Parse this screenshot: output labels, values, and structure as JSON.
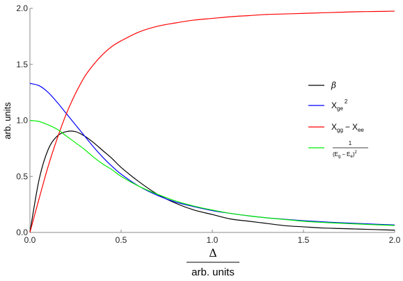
{
  "chart_data": {
    "type": "line",
    "title": "",
    "xlabel_num": "Δ",
    "xlabel_den": "arb. units",
    "ylabel": "arb. units",
    "xlim": [
      0,
      2.0
    ],
    "ylim": [
      0,
      2.0
    ],
    "x_ticks": [
      0.0,
      0.5,
      1.0,
      1.5,
      2.0
    ],
    "x_tick_labels": [
      "0.0",
      "0.5",
      "1.0",
      "1.5",
      "2.0"
    ],
    "y_ticks": [
      0.0,
      0.5,
      1.0,
      1.5,
      2.0
    ],
    "y_tick_labels": [
      "0.0",
      "0.5",
      "1.0",
      "1.5",
      "2.0"
    ],
    "grid": false,
    "legend_position": "right",
    "x": [
      0.0,
      0.05,
      0.1,
      0.15,
      0.2,
      0.25,
      0.3,
      0.35,
      0.4,
      0.45,
      0.5,
      0.6,
      0.7,
      0.8,
      0.9,
      1.0,
      1.1,
      1.2,
      1.3,
      1.4,
      1.5,
      1.6,
      1.7,
      1.8,
      1.9,
      2.0
    ],
    "series": [
      {
        "key": "beta",
        "color": "#000000",
        "values": [
          0.0,
          0.47,
          0.74,
          0.86,
          0.9,
          0.9,
          0.86,
          0.8,
          0.73,
          0.66,
          0.58,
          0.45,
          0.34,
          0.26,
          0.2,
          0.16,
          0.12,
          0.1,
          0.08,
          0.06,
          0.05,
          0.04,
          0.035,
          0.03,
          0.025,
          0.02
        ]
      },
      {
        "key": "xge2",
        "color": "#0000ff",
        "values": [
          1.33,
          1.31,
          1.25,
          1.16,
          1.06,
          0.96,
          0.86,
          0.76,
          0.67,
          0.59,
          0.52,
          0.41,
          0.33,
          0.27,
          0.23,
          0.195,
          0.17,
          0.148,
          0.13,
          0.117,
          0.105,
          0.095,
          0.087,
          0.08,
          0.073,
          0.067
        ]
      },
      {
        "key": "xgg_minus_xee",
        "color": "#ff0000",
        "values": [
          0.0,
          0.3,
          0.59,
          0.84,
          1.06,
          1.24,
          1.39,
          1.5,
          1.59,
          1.66,
          1.71,
          1.79,
          1.84,
          1.87,
          1.895,
          1.91,
          1.925,
          1.935,
          1.945,
          1.95,
          1.955,
          1.96,
          1.965,
          1.97,
          1.972,
          1.975
        ]
      },
      {
        "key": "inverse_energy",
        "color": "#00ee00",
        "values": [
          1.0,
          0.99,
          0.96,
          0.92,
          0.86,
          0.8,
          0.74,
          0.67,
          0.61,
          0.56,
          0.5,
          0.41,
          0.34,
          0.28,
          0.235,
          0.2,
          0.17,
          0.148,
          0.13,
          0.115,
          0.1,
          0.09,
          0.082,
          0.075,
          0.068,
          0.062
        ]
      }
    ],
    "legend": {
      "beta": {
        "symbol": "β"
      },
      "xge2": {
        "base": "X",
        "sub": "ge",
        "sup": "2"
      },
      "xgg_minus_xee": {
        "base1": "X",
        "sub1": "gg",
        "op": "−",
        "base2": "X",
        "sub2": "ee"
      },
      "inverse_energy": {
        "num": "1",
        "open": "(E",
        "sub1": "g",
        "op": "−",
        "mid": "E",
        "sub2": "e",
        "close": ")",
        "sup": "2"
      }
    }
  }
}
